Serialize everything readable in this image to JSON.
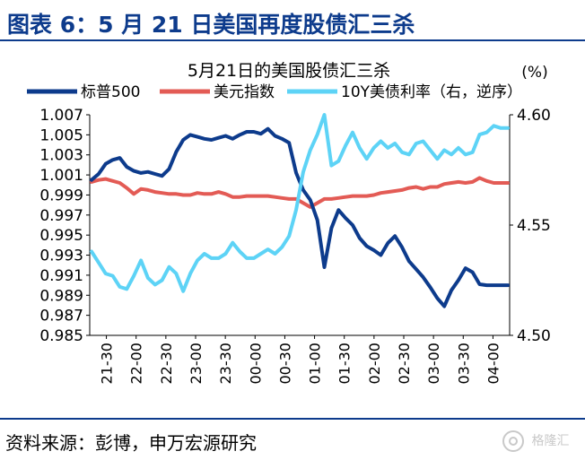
{
  "header": {
    "title": "图表 6：5 月 21 日美国再度股债汇三杀"
  },
  "footer": {
    "source": "资料来源：彭博，申万宏源研究"
  },
  "watermark": {
    "text": "格隆汇"
  },
  "colors": {
    "spx": "#0d3b8c",
    "dxy": "#e35b55",
    "ust": "#5dd3f6",
    "brand": "#0d3b8c"
  },
  "chart_data": {
    "type": "line",
    "title": "5月21日的美国股债汇三杀",
    "right_unit": "(%)",
    "legend": [
      "标普500",
      "美元指数",
      "10Y美债利率（右，逆序）"
    ],
    "legend_position": "top",
    "x_tick_labels": [
      "21-30",
      "22-00",
      "22-30",
      "23-00",
      "23-30",
      "00-00",
      "00-30",
      "01-00",
      "01-30",
      "02-00",
      "02-30",
      "03-00",
      "03-30",
      "04-00"
    ],
    "left_axis": {
      "ylim": [
        0.985,
        1.007
      ],
      "ticks": [
        "1.007",
        "1.005",
        "1.003",
        "1.001",
        "0.999",
        "0.997",
        "0.995",
        "0.993",
        "0.991",
        "0.989",
        "0.987",
        "0.985"
      ]
    },
    "right_axis": {
      "ylim": [
        4.5,
        4.6
      ],
      "inverted": true,
      "ticks": [
        "4.60",
        "4.55",
        "4.50"
      ]
    },
    "x": [
      0,
      0.25,
      0.5,
      0.75,
      1,
      1.25,
      1.5,
      1.75,
      2,
      2.25,
      2.5,
      2.75,
      3,
      3.25,
      3.5,
      3.75,
      4,
      4.25,
      4.5,
      4.75,
      5,
      5.25,
      5.5,
      5.75,
      6,
      6.25,
      6.5,
      6.75,
      7,
      7.25,
      7.5,
      7.75,
      8,
      8.25,
      8.5,
      8.75,
      9,
      9.25,
      9.5,
      9.75,
      10,
      10.25,
      10.5,
      10.75,
      11,
      11.25,
      11.5,
      11.75,
      12,
      12.25,
      12.5,
      12.75,
      13,
      13.25,
      13.5,
      13.75,
      14,
      14.25,
      14.5,
      14.75
    ],
    "series": [
      {
        "name": "标普500",
        "axis": "left",
        "values": [
          1.0005,
          1.0011,
          1.0021,
          1.0025,
          1.0027,
          1.0018,
          1.0014,
          1.0012,
          1.0013,
          1.0011,
          1.0009,
          1.0016,
          1.0033,
          1.0045,
          1.005,
          1.0048,
          1.0046,
          1.0045,
          1.0047,
          1.0049,
          1.0046,
          1.005,
          1.0053,
          1.0053,
          1.0051,
          1.0056,
          1.0049,
          1.0046,
          1.0042,
          1.0012,
          0.9995,
          0.9985,
          0.9965,
          0.9918,
          0.9957,
          0.9975,
          0.9967,
          0.996,
          0.9947,
          0.9939,
          0.9935,
          0.993,
          0.9942,
          0.9949,
          0.9938,
          0.9924,
          0.9916,
          0.9908,
          0.9898,
          0.9887,
          0.9879,
          0.9895,
          0.9905,
          0.9917,
          0.9913,
          0.9901,
          0.99,
          0.99,
          0.99,
          0.99
        ]
      },
      {
        "name": "美元指数",
        "axis": "left",
        "values": [
          1.0003,
          1.0005,
          1.0006,
          1.0004,
          1.0002,
          0.9997,
          0.9991,
          0.9996,
          0.9995,
          0.9993,
          0.9992,
          0.9991,
          0.9991,
          0.999,
          0.999,
          0.9992,
          0.9991,
          0.9991,
          0.9993,
          0.9991,
          0.9988,
          0.9988,
          0.9989,
          0.9989,
          0.9989,
          0.9989,
          0.9988,
          0.9987,
          0.9986,
          0.9986,
          0.9982,
          0.9978,
          0.9982,
          0.9986,
          0.9986,
          0.9987,
          0.9988,
          0.9989,
          0.9989,
          0.9989,
          0.999,
          0.9992,
          0.9993,
          0.9994,
          0.9995,
          0.9997,
          0.9998,
          0.9996,
          0.9998,
          0.9998,
          1.0001,
          1.0002,
          1.0003,
          1.0002,
          1.0003,
          1.0007,
          1.0004,
          1.0002,
          1.0002,
          1.0002
        ]
      },
      {
        "name": "10Y美债利率（右，逆序）",
        "axis": "right",
        "values": [
          4.538,
          4.533,
          4.528,
          4.527,
          4.522,
          4.521,
          4.527,
          4.534,
          4.526,
          4.523,
          4.525,
          4.531,
          4.528,
          4.52,
          4.528,
          4.534,
          4.537,
          4.535,
          4.535,
          4.537,
          4.542,
          4.538,
          4.535,
          4.535,
          4.537,
          4.539,
          4.537,
          4.54,
          4.545,
          4.557,
          4.574,
          4.584,
          4.591,
          4.6,
          4.577,
          4.579,
          4.586,
          4.592,
          4.585,
          4.58,
          4.585,
          4.588,
          4.585,
          4.587,
          4.583,
          4.582,
          4.587,
          4.588,
          4.584,
          4.58,
          4.584,
          4.582,
          4.585,
          4.582,
          4.583,
          4.591,
          4.592,
          4.595,
          4.594,
          4.594
        ]
      }
    ]
  }
}
